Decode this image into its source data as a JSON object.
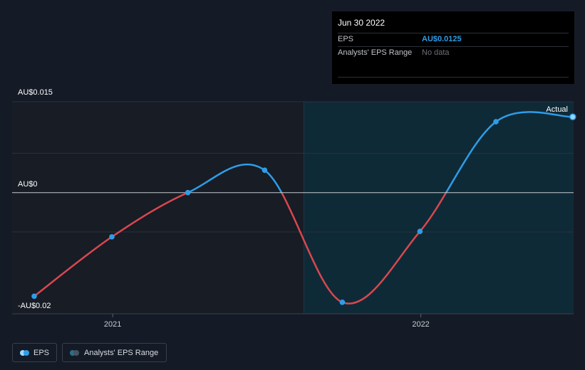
{
  "tooltip": {
    "date": "Jun 30 2022",
    "rows": [
      {
        "label": "EPS",
        "value": "AU$0.0125"
      },
      {
        "label": "Analysts' EPS Range",
        "value": "No data"
      }
    ]
  },
  "legend": {
    "items": [
      {
        "label": "EPS",
        "color": "#2e9de8",
        "color2": "#9cd5ff"
      },
      {
        "label": "Analysts' EPS Range",
        "color": "#2b6f8a",
        "color2": "#455462"
      }
    ]
  },
  "colors": {
    "background": "#151b26",
    "positive_line": "#2e9de8",
    "negative_line": "#d9474f",
    "forecast_area": "#0f2a37",
    "zero_line": "#c5c9cf"
  },
  "chart_data": {
    "type": "line",
    "x_ticks": [
      "2021",
      "2022"
    ],
    "y_tick_labels": [
      "AU$0.015",
      "AU$0",
      "-AU$0.02"
    ],
    "ylim": [
      -0.02,
      0.015
    ],
    "x_range": [
      "2020-09-30",
      "2022-07-01"
    ],
    "annotation": "Actual",
    "series": [
      {
        "name": "EPS",
        "x": [
          "2020-09-30",
          "2020-12-31",
          "2021-03-31",
          "2021-06-30",
          "2021-09-30",
          "2021-12-31",
          "2022-03-31",
          "2022-06-30"
        ],
        "y": [
          -0.0171,
          -0.0073,
          0.0,
          0.0037,
          -0.0181,
          -0.0064,
          0.0117,
          0.0125
        ]
      }
    ]
  }
}
